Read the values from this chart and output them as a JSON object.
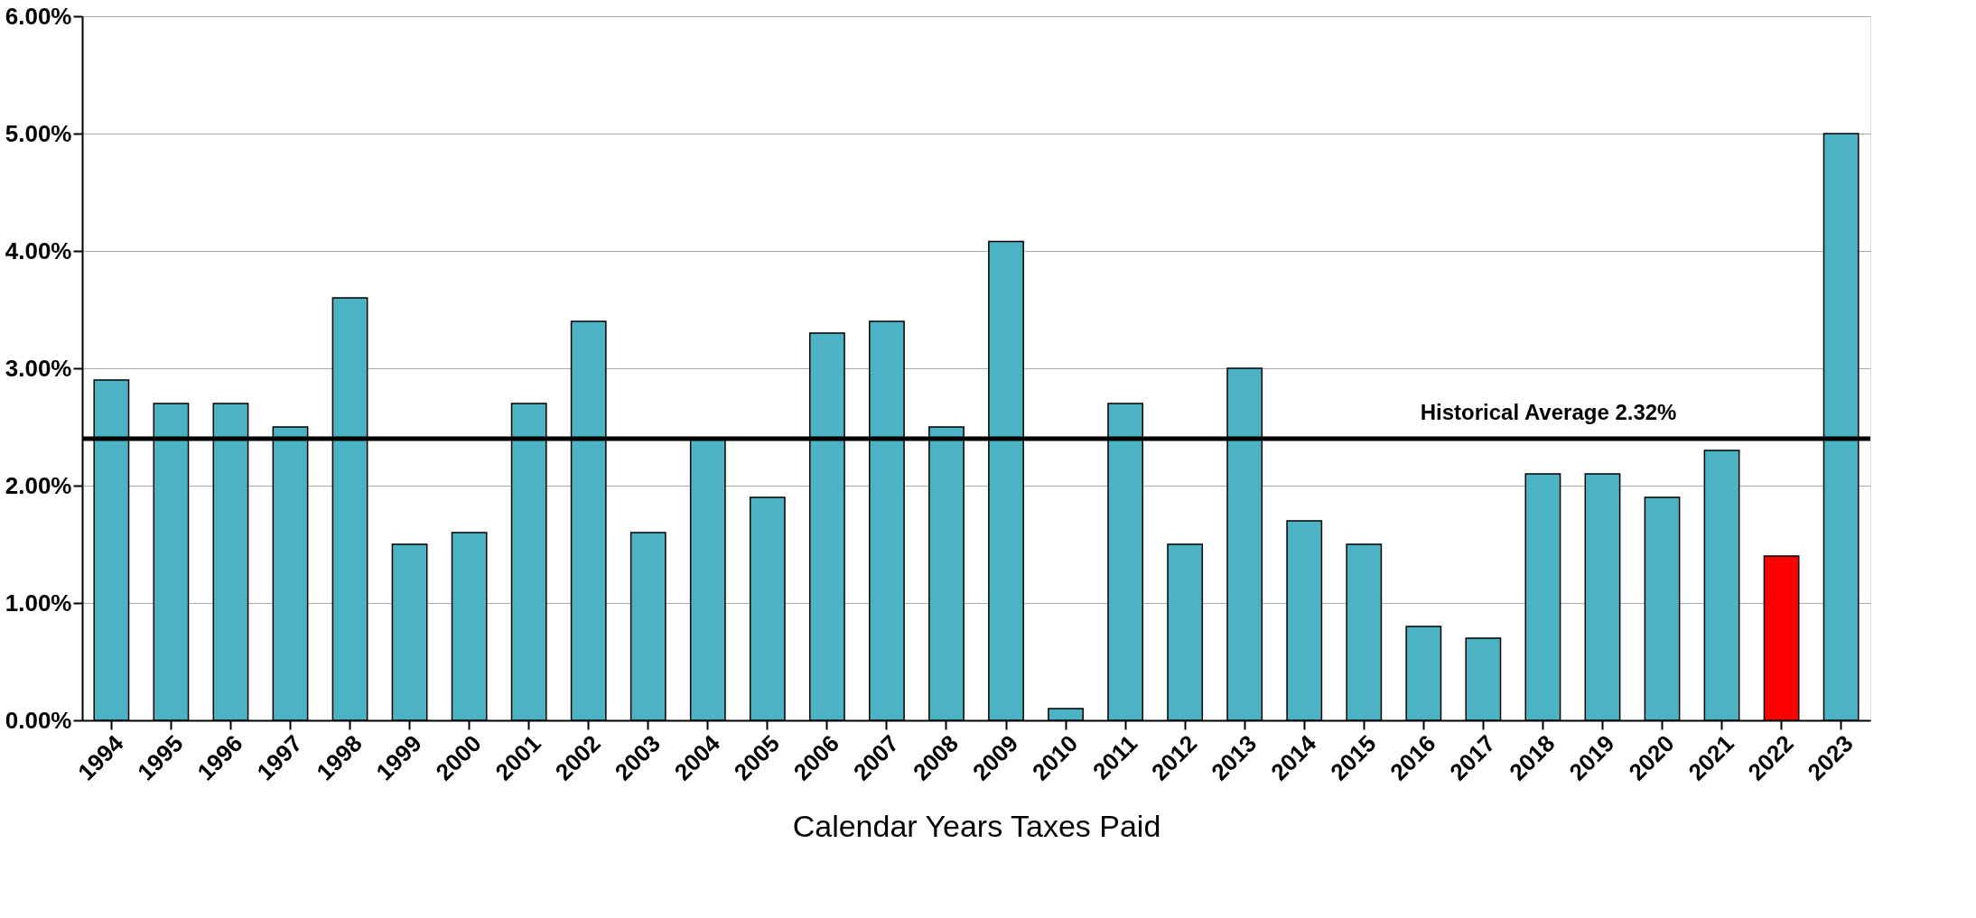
{
  "chart_data": {
    "type": "bar",
    "xlabel": "Calendar Years Taxes Paid",
    "categories": [
      "1994",
      "1995",
      "1996",
      "1997",
      "1998",
      "1999",
      "2000",
      "2001",
      "2002",
      "2003",
      "2004",
      "2005",
      "2006",
      "2007",
      "2008",
      "2009",
      "2010",
      "2011",
      "2012",
      "2013",
      "2014",
      "2015",
      "2016",
      "2017",
      "2018",
      "2019",
      "2020",
      "2021",
      "2022",
      "2023"
    ],
    "values": [
      2.9,
      2.7,
      2.7,
      2.5,
      3.6,
      1.5,
      1.6,
      2.7,
      3.4,
      1.6,
      2.4,
      1.9,
      3.3,
      3.4,
      2.5,
      4.08,
      0.1,
      2.7,
      1.5,
      3.0,
      1.7,
      1.5,
      0.8,
      0.7,
      2.1,
      2.1,
      1.9,
      2.3,
      1.4,
      5.0
    ],
    "colors": [
      "#4bb3c4",
      "#4bb3c4",
      "#4bb3c4",
      "#4bb3c4",
      "#4bb3c4",
      "#4bb3c4",
      "#4bb3c4",
      "#4bb3c4",
      "#4bb3c4",
      "#4bb3c4",
      "#4bb3c4",
      "#4bb3c4",
      "#4bb3c4",
      "#4bb3c4",
      "#4bb3c4",
      "#4bb3c4",
      "#4bb3c4",
      "#4bb3c4",
      "#4bb3c4",
      "#4bb3c4",
      "#4bb3c4",
      "#4bb3c4",
      "#4bb3c4",
      "#4bb3c4",
      "#4bb3c4",
      "#4bb3c4",
      "#4bb3c4",
      "#4bb3c4",
      "#ff0000",
      "#4bb3c4"
    ],
    "ylim": [
      0,
      6
    ],
    "yticks": [
      {
        "value": 0,
        "label": "0.00%"
      },
      {
        "value": 1,
        "label": "1.00%"
      },
      {
        "value": 2,
        "label": "2.00%"
      },
      {
        "value": 3,
        "label": "3.00%"
      },
      {
        "value": 4,
        "label": "4.00%"
      },
      {
        "value": 5,
        "label": "5.00%"
      },
      {
        "value": 6,
        "label": "6.00%"
      }
    ],
    "ref_lines": [
      {
        "axis": "y",
        "value": 2.4,
        "label": "Historical Average 2.32%",
        "color": "#000000"
      }
    ],
    "grid": "y"
  }
}
